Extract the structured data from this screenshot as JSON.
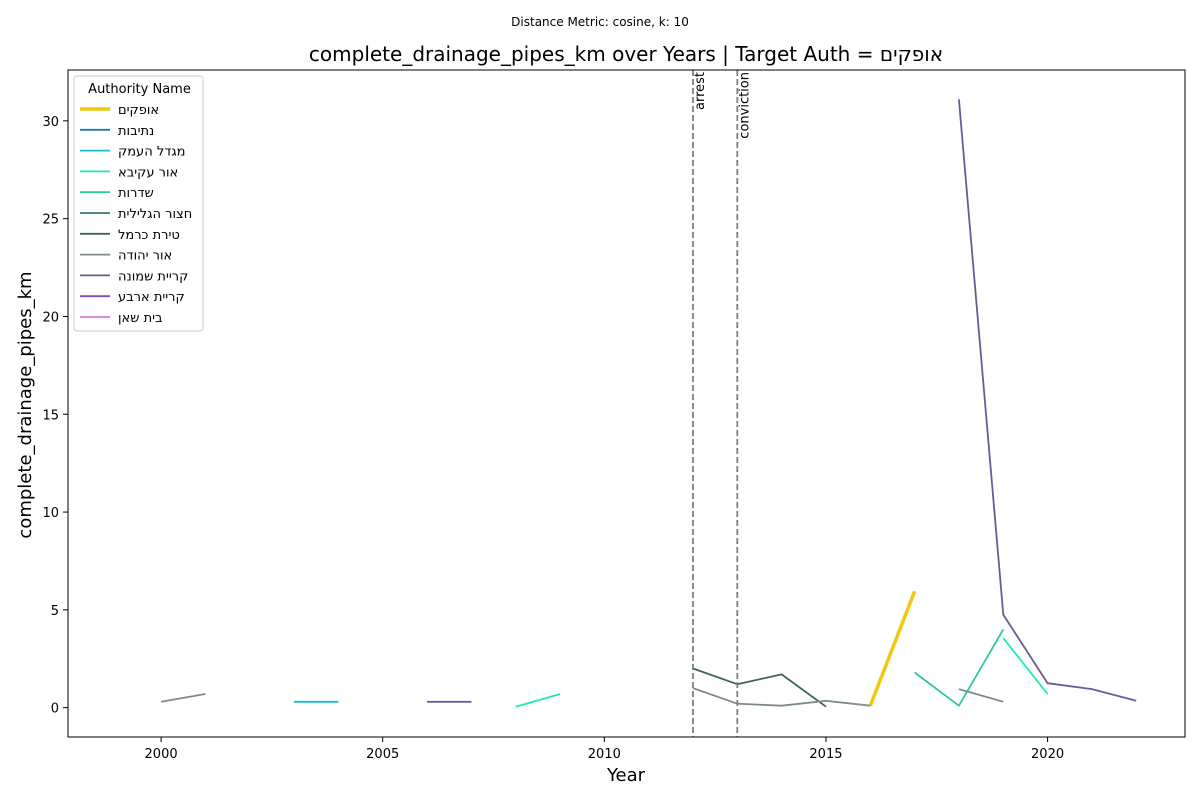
{
  "chart_data": {
    "type": "line",
    "suptitle": "Distance Metric: cosine, k: 10",
    "title": "complete_drainage_pipes_km over Years | Target Auth = אופקים",
    "xlabel": "Year",
    "ylabel": "complete_drainage_pipes_km",
    "xlim": [
      1997.9,
      2023.1
    ],
    "ylim": [
      -1.5,
      32.6
    ],
    "xticks": [
      2000,
      2005,
      2010,
      2015,
      2020
    ],
    "yticks": [
      0,
      5,
      10,
      15,
      20,
      25,
      30
    ],
    "grid": false,
    "legend": {
      "title": "Authority Name",
      "placement": "upper-left"
    },
    "vlines": [
      {
        "x": 2012,
        "label": "arrest"
      },
      {
        "x": 2013,
        "label": "conviction"
      }
    ],
    "series": [
      {
        "name": "אופקים",
        "color": "#f2c70f",
        "target": true,
        "segments": [
          [
            [
              2016,
              0.1
            ],
            [
              2017,
              5.95
            ]
          ]
        ]
      },
      {
        "name": "נתיבות",
        "color": "#1f77b4",
        "segments": []
      },
      {
        "name": "מגדל העמק",
        "color": "#17becf",
        "segments": [
          [
            [
              2003,
              0.3
            ],
            [
              2004,
              0.3
            ]
          ]
        ]
      },
      {
        "name": "אור עקיבא",
        "color": "#1de9b6",
        "segments": [
          [
            [
              2008,
              0.05
            ],
            [
              2009,
              0.7
            ]
          ],
          [
            [
              2019,
              3.55
            ],
            [
              2020,
              0.7
            ]
          ]
        ]
      },
      {
        "name": "שדרות",
        "color": "#2ecc8f",
        "segments": [
          [
            [
              2017,
              1.8
            ],
            [
              2018,
              0.1
            ],
            [
              2019,
              4.0
            ]
          ]
        ]
      },
      {
        "name": "חצור הגלילית",
        "color": "#3b7a5e",
        "segments": []
      },
      {
        "name": "טירת כרמל",
        "color": "#3d6456",
        "segments": [
          [
            [
              2012,
              2.0
            ],
            [
              2013,
              1.2
            ],
            [
              2014,
              1.7
            ],
            [
              2015,
              0.05
            ]
          ]
        ]
      },
      {
        "name": "אור יהודה",
        "color": "#7f8c8d",
        "segments": [
          [
            [
              2000,
              0.3
            ],
            [
              2001,
              0.7
            ]
          ],
          [
            [
              2012,
              1.0
            ],
            [
              2013,
              0.2
            ],
            [
              2014,
              0.1
            ],
            [
              2015,
              0.35
            ],
            [
              2016,
              0.1
            ]
          ],
          [
            [
              2018,
              0.95
            ],
            [
              2019,
              0.3
            ]
          ]
        ]
      },
      {
        "name": "קריית שמונה",
        "color": "#6b5b95",
        "segments": [
          [
            [
              2006,
              0.3
            ],
            [
              2007,
              0.3
            ]
          ],
          [
            [
              2018,
              31.1
            ],
            [
              2019,
              4.75
            ],
            [
              2020,
              1.25
            ],
            [
              2021,
              0.95
            ],
            [
              2022,
              0.35
            ]
          ]
        ]
      },
      {
        "name": "קריית ארבע",
        "color": "#7e4bb5",
        "segments": []
      },
      {
        "name": "בית שאן",
        "color": "#d67ad8",
        "segments": []
      }
    ]
  }
}
